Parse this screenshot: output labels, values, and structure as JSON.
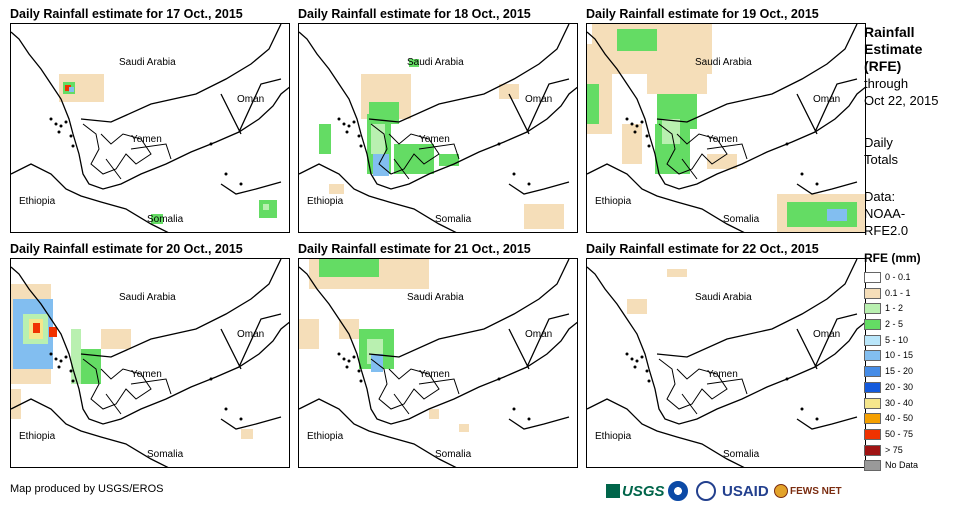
{
  "panels": [
    {
      "title": "Daily Rainfall estimate for 17 Oct., 2015"
    },
    {
      "title": "Daily Rainfall estimate for 18 Oct., 2015"
    },
    {
      "title": "Daily Rainfall estimate for 19 Oct., 2015"
    },
    {
      "title": "Daily Rainfall estimate for 20 Oct., 2015"
    },
    {
      "title": "Daily Rainfall estimate for 21 Oct., 2015"
    },
    {
      "title": "Daily Rainfall estimate for 22 Oct., 2015"
    }
  ],
  "map_labels": {
    "saudi": "Saudi Arabia",
    "oman": "Oman",
    "yemen": "Yemen",
    "ethiopia": "Ethiopia",
    "somalia": "Somalia"
  },
  "sidebar": {
    "title_line1": "Rainfall",
    "title_line2": "Estimate",
    "title_line3": "(RFE)",
    "through": "through",
    "through_date": "Oct 22, 2015",
    "daily": "Daily",
    "totals": "Totals",
    "data_label": "Data:",
    "data_source1": "NOAA-",
    "data_source2": "RFE2.0"
  },
  "legend": {
    "title": "RFE (mm)",
    "items": [
      {
        "label": "0 - 0.1",
        "color": "#ffffff"
      },
      {
        "label": "0.1 - 1",
        "color": "#f5deb9"
      },
      {
        "label": "1 - 2",
        "color": "#b9f0b0"
      },
      {
        "label": "2 - 5",
        "color": "#64dc64"
      },
      {
        "label": "5 - 10",
        "color": "#b9e6fa"
      },
      {
        "label": "10 - 15",
        "color": "#82bef0"
      },
      {
        "label": "15 - 20",
        "color": "#468ce6"
      },
      {
        "label": "20 - 30",
        "color": "#145adc"
      },
      {
        "label": "30 - 40",
        "color": "#f5e68c"
      },
      {
        "label": "40 - 50",
        "color": "#f5a000"
      },
      {
        "label": "50 - 75",
        "color": "#f03200"
      },
      {
        "label": "> 75",
        "color": "#a01414"
      },
      {
        "label": "No Data",
        "color": "#999999"
      }
    ]
  },
  "footer": {
    "credit": "Map produced by USGS/EROS",
    "logo_usgs": "USGS",
    "logo_usaid": "USAID",
    "logo_fews": "FEWS NET"
  }
}
